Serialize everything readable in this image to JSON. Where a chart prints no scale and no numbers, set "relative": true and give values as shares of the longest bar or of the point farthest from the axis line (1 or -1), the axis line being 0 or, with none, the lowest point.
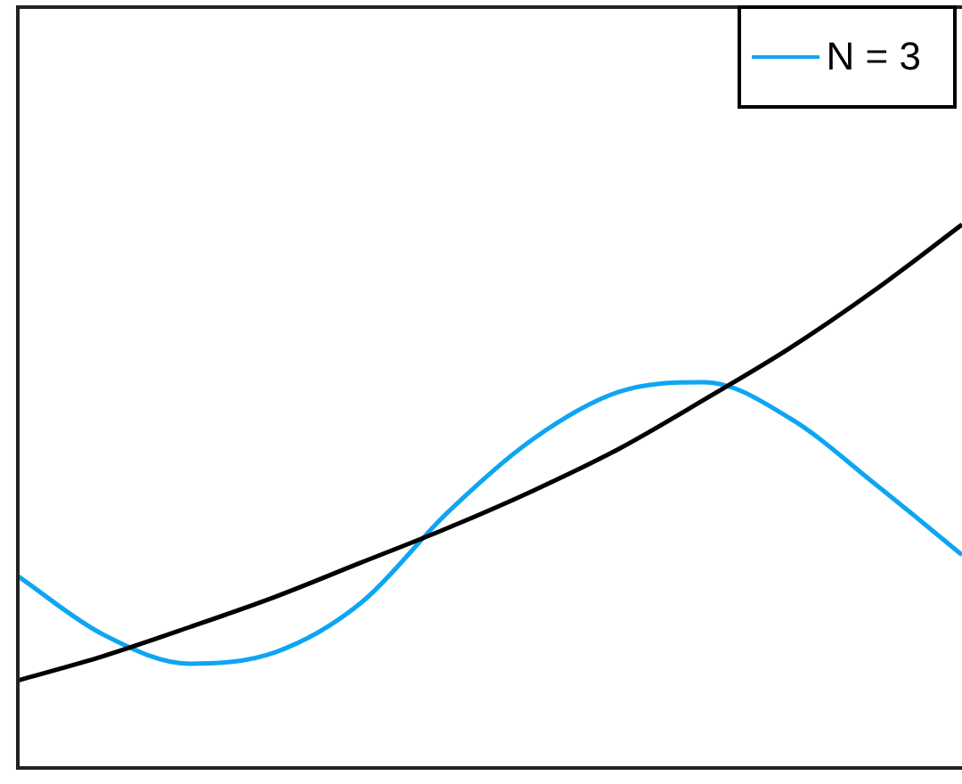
{
  "chart_data": {
    "type": "line",
    "relative": true,
    "categories": [
      null,
      null,
      null,
      null,
      null,
      null,
      null,
      null,
      null,
      null,
      null,
      null
    ],
    "series": [
      {
        "color": "#000000",
        "values": [
          0.161,
          0.206,
          0.259,
          0.315,
          0.378,
          0.441,
          0.51,
          0.587,
          0.678,
          0.773,
          0.881,
          1
        ]
      },
      {
        "name": "N = 3",
        "color": "#0ea5f2",
        "values": [
          0.353,
          0.245,
          0.192,
          0.213,
          0.304,
          0.469,
          0.605,
          0.692,
          0.71,
          0.643,
          0.521,
          0.392
        ]
      }
    ],
    "legend": "top right",
    "grid": false,
    "marker": "none",
    "line_style": "solid"
  }
}
